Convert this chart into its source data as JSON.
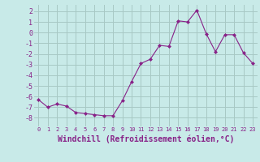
{
  "x": [
    0,
    1,
    2,
    3,
    4,
    5,
    6,
    7,
    8,
    9,
    10,
    11,
    12,
    13,
    14,
    15,
    16,
    17,
    18,
    19,
    20,
    21,
    22,
    23
  ],
  "y": [
    -6.3,
    -7.0,
    -6.7,
    -6.9,
    -7.5,
    -7.6,
    -7.7,
    -7.8,
    -7.8,
    -6.4,
    -4.6,
    -2.9,
    -2.5,
    -1.2,
    -1.3,
    1.1,
    1.0,
    2.1,
    -0.1,
    -1.8,
    -0.2,
    -0.2,
    -1.9,
    -2.9
  ],
  "line_color": "#882288",
  "marker": "D",
  "marker_size": 2.0,
  "bg_color": "#c8eae8",
  "grid_color": "#a8c8c4",
  "xlabel": "Windchill (Refroidissement éolien,°C)",
  "xlabel_fontsize": 7,
  "tick_color": "#882288",
  "ylim": [
    -8.8,
    2.6
  ],
  "xlim": [
    -0.5,
    23.5
  ],
  "yticks": [
    -8,
    -7,
    -6,
    -5,
    -4,
    -3,
    -2,
    -1,
    0,
    1,
    2
  ],
  "xticks": [
    0,
    1,
    2,
    3,
    4,
    5,
    6,
    7,
    8,
    9,
    10,
    11,
    12,
    13,
    14,
    15,
    16,
    17,
    18,
    19,
    20,
    21,
    22,
    23
  ]
}
